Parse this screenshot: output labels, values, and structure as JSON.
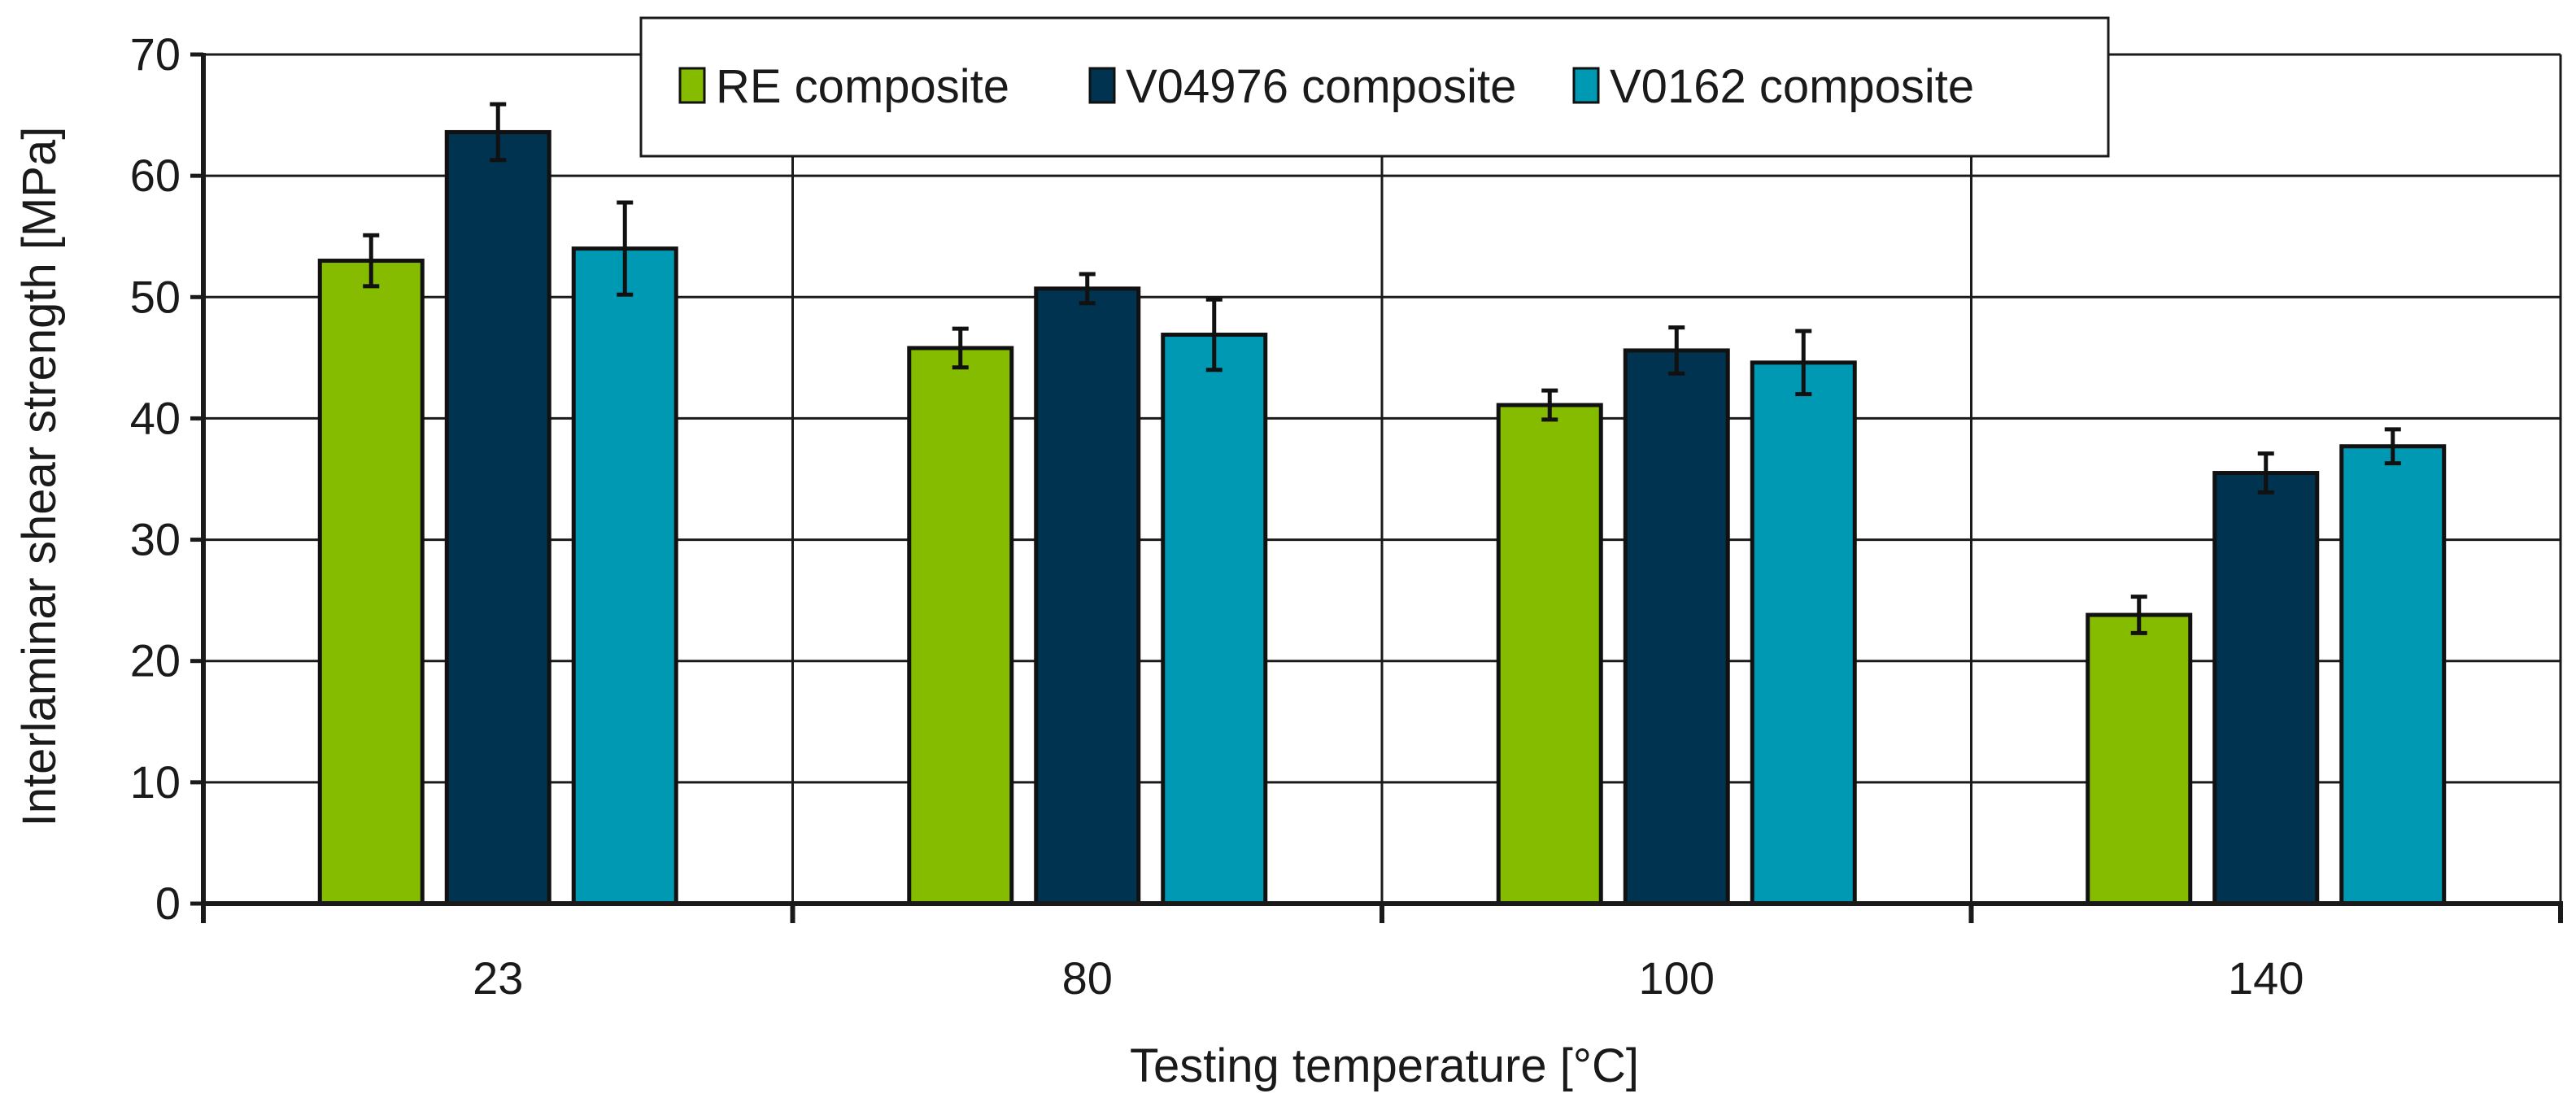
{
  "chart_data": {
    "type": "bar",
    "title": "",
    "xlabel": "Testing temperature   [°C]",
    "ylabel": "Interlaminar shear strength   [MPa]",
    "ylim": [
      0,
      70
    ],
    "yticks": [
      0,
      10,
      20,
      30,
      40,
      50,
      60,
      70
    ],
    "grid": true,
    "legend_position": "top-center",
    "categories": [
      "23",
      "80",
      "100",
      "140"
    ],
    "series": [
      {
        "name": "RE composite",
        "color": "#86BC00",
        "values": [
          53.0,
          45.8,
          41.1,
          23.8
        ],
        "errors": [
          2.1,
          1.6,
          1.2,
          1.5
        ]
      },
      {
        "name": "V04976 composite",
        "color": "#003350",
        "values": [
          63.6,
          50.7,
          45.6,
          35.5
        ],
        "errors": [
          2.3,
          1.2,
          1.9,
          1.6
        ]
      },
      {
        "name": "V0162 composite",
        "color": "#0099B4",
        "values": [
          54.0,
          46.9,
          44.6,
          37.7
        ],
        "errors": [
          3.8,
          2.9,
          2.6,
          1.4
        ]
      }
    ]
  }
}
